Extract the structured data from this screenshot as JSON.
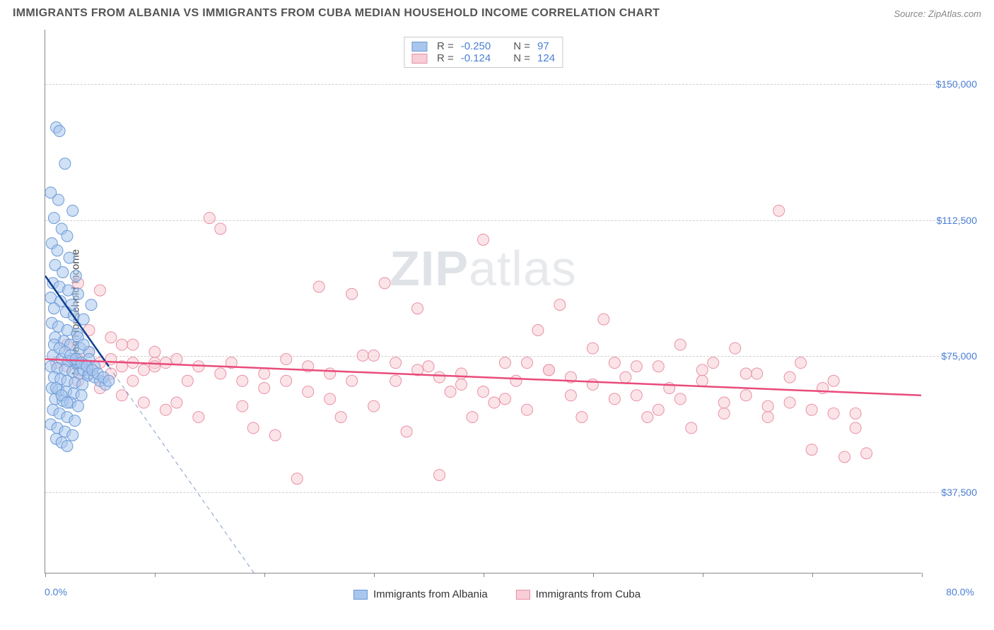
{
  "title": "IMMIGRANTS FROM ALBANIA VS IMMIGRANTS FROM CUBA MEDIAN HOUSEHOLD INCOME CORRELATION CHART",
  "source": "Source: ZipAtlas.com",
  "watermark_bold": "ZIP",
  "watermark_rest": "atlas",
  "y_axis_label": "Median Household Income",
  "chart": {
    "type": "scatter",
    "background": "#ffffff",
    "grid_color": "#d0d0d0",
    "xlim": [
      0,
      80
    ],
    "ylim": [
      15000,
      165000
    ],
    "x_ticks": [
      0,
      10,
      20,
      30,
      40,
      50,
      60,
      70,
      80
    ],
    "y_gridlines": [
      37500,
      75000,
      112500,
      150000
    ],
    "y_tick_labels": [
      "$37,500",
      "$75,000",
      "$112,500",
      "$150,000"
    ],
    "x_min_label": "0.0%",
    "x_max_label": "80.0%",
    "series": [
      {
        "key": "albania",
        "label": "Immigrants from Albania",
        "fill": "#a9c6ed",
        "stroke": "#6a9ad8",
        "line_color": "#0b3d91",
        "R": "-0.250",
        "N": "97",
        "trend_solid": {
          "x1": 0,
          "y1": 97000,
          "x2": 5.8,
          "y2": 72000
        },
        "trend_dash": {
          "x1": 5.8,
          "y1": 72000,
          "x2": 23,
          "y2": -2000
        },
        "points": [
          [
            1.0,
            138000
          ],
          [
            1.3,
            137000
          ],
          [
            1.8,
            128000
          ],
          [
            0.5,
            120000
          ],
          [
            1.2,
            118000
          ],
          [
            2.5,
            115000
          ],
          [
            0.8,
            113000
          ],
          [
            1.5,
            110000
          ],
          [
            2.0,
            108000
          ],
          [
            0.6,
            106000
          ],
          [
            1.1,
            104000
          ],
          [
            2.2,
            102000
          ],
          [
            0.9,
            100000
          ],
          [
            1.6,
            98000
          ],
          [
            2.8,
            97000
          ],
          [
            0.7,
            95000
          ],
          [
            1.3,
            94000
          ],
          [
            2.1,
            93000
          ],
          [
            3.0,
            92000
          ],
          [
            0.5,
            91000
          ],
          [
            1.4,
            90000
          ],
          [
            2.4,
            89000
          ],
          [
            0.8,
            88000
          ],
          [
            1.9,
            87000
          ],
          [
            2.6,
            86000
          ],
          [
            3.5,
            85000
          ],
          [
            0.6,
            84000
          ],
          [
            1.2,
            83000
          ],
          [
            2.0,
            82000
          ],
          [
            2.9,
            81000
          ],
          [
            0.9,
            80000
          ],
          [
            1.7,
            79000
          ],
          [
            2.3,
            78000
          ],
          [
            3.2,
            77000
          ],
          [
            4.0,
            76000
          ],
          [
            0.7,
            75000
          ],
          [
            1.5,
            74000
          ],
          [
            2.1,
            73500
          ],
          [
            2.8,
            73000
          ],
          [
            3.6,
            72500
          ],
          [
            0.5,
            72000
          ],
          [
            1.1,
            71500
          ],
          [
            1.8,
            71000
          ],
          [
            2.5,
            70500
          ],
          [
            3.1,
            70000
          ],
          [
            3.9,
            69500
          ],
          [
            0.8,
            69000
          ],
          [
            1.4,
            68500
          ],
          [
            2.0,
            68000
          ],
          [
            2.7,
            67500
          ],
          [
            3.4,
            67000
          ],
          [
            4.2,
            89000
          ],
          [
            0.6,
            66000
          ],
          [
            1.2,
            65500
          ],
          [
            1.9,
            65000
          ],
          [
            2.6,
            64500
          ],
          [
            3.3,
            64000
          ],
          [
            0.9,
            63000
          ],
          [
            1.6,
            62500
          ],
          [
            2.3,
            62000
          ],
          [
            3.0,
            61000
          ],
          [
            0.7,
            60000
          ],
          [
            1.3,
            59000
          ],
          [
            2.0,
            58000
          ],
          [
            2.7,
            57000
          ],
          [
            0.5,
            56000
          ],
          [
            1.1,
            55000
          ],
          [
            1.8,
            54000
          ],
          [
            2.5,
            53000
          ],
          [
            3.0,
            80000
          ],
          [
            3.5,
            78000
          ],
          [
            4.0,
            74000
          ],
          [
            4.5,
            72000
          ],
          [
            1.0,
            52000
          ],
          [
            1.5,
            51000
          ],
          [
            2.0,
            50000
          ],
          [
            2.5,
            74000
          ],
          [
            3.0,
            73000
          ],
          [
            3.5,
            71000
          ],
          [
            4.0,
            70000
          ],
          [
            4.5,
            69000
          ],
          [
            5.0,
            68000
          ],
          [
            5.5,
            67000
          ],
          [
            0.8,
            78000
          ],
          [
            1.3,
            77000
          ],
          [
            1.8,
            76000
          ],
          [
            2.3,
            75000
          ],
          [
            2.8,
            74000
          ],
          [
            3.3,
            73000
          ],
          [
            3.8,
            72000
          ],
          [
            4.3,
            71000
          ],
          [
            4.8,
            70000
          ],
          [
            5.3,
            69000
          ],
          [
            5.8,
            68000
          ],
          [
            1.0,
            66000
          ],
          [
            1.5,
            64000
          ],
          [
            2.0,
            62000
          ]
        ]
      },
      {
        "key": "cuba",
        "label": "Immigrants from Cuba",
        "fill": "#f7cdd6",
        "stroke": "#ea8fa6",
        "line_color": "#e94b7a",
        "R": "-0.124",
        "N": "124",
        "trend_solid": {
          "x1": 0,
          "y1": 74000,
          "x2": 80,
          "y2": 64000
        },
        "points": [
          [
            1,
            73000
          ],
          [
            2,
            72000
          ],
          [
            3,
            74000
          ],
          [
            4,
            71000
          ],
          [
            5,
            73000
          ],
          [
            6,
            70000
          ],
          [
            7,
            72000
          ],
          [
            8,
            68000
          ],
          [
            9,
            71000
          ],
          [
            10,
            73000
          ],
          [
            3,
            95000
          ],
          [
            5,
            93000
          ],
          [
            7,
            78000
          ],
          [
            11,
            73000
          ],
          [
            12,
            62000
          ],
          [
            13,
            68000
          ],
          [
            14,
            58000
          ],
          [
            15,
            113000
          ],
          [
            16,
            110000
          ],
          [
            17,
            73000
          ],
          [
            18,
            61000
          ],
          [
            19,
            55000
          ],
          [
            20,
            70000
          ],
          [
            21,
            53000
          ],
          [
            22,
            68000
          ],
          [
            23,
            41000
          ],
          [
            24,
            65000
          ],
          [
            25,
            94000
          ],
          [
            26,
            63000
          ],
          [
            27,
            58000
          ],
          [
            28,
            92000
          ],
          [
            29,
            75000
          ],
          [
            30,
            61000
          ],
          [
            31,
            95000
          ],
          [
            32,
            68000
          ],
          [
            33,
            54000
          ],
          [
            34,
            88000
          ],
          [
            35,
            72000
          ],
          [
            36,
            42000
          ],
          [
            37,
            65000
          ],
          [
            38,
            70000
          ],
          [
            39,
            58000
          ],
          [
            40,
            107000
          ],
          [
            41,
            62000
          ],
          [
            42,
            73000
          ],
          [
            43,
            68000
          ],
          [
            44,
            60000
          ],
          [
            45,
            82000
          ],
          [
            46,
            71000
          ],
          [
            47,
            89000
          ],
          [
            48,
            64000
          ],
          [
            49,
            58000
          ],
          [
            50,
            77000
          ],
          [
            51,
            85000
          ],
          [
            52,
            63000
          ],
          [
            53,
            69000
          ],
          [
            54,
            72000
          ],
          [
            55,
            58000
          ],
          [
            56,
            60000
          ],
          [
            57,
            66000
          ],
          [
            58,
            78000
          ],
          [
            59,
            55000
          ],
          [
            60,
            68000
          ],
          [
            61,
            73000
          ],
          [
            62,
            59000
          ],
          [
            63,
            77000
          ],
          [
            64,
            64000
          ],
          [
            65,
            70000
          ],
          [
            66,
            58000
          ],
          [
            67,
            115000
          ],
          [
            68,
            62000
          ],
          [
            69,
            73000
          ],
          [
            70,
            49000
          ],
          [
            71,
            66000
          ],
          [
            72,
            59000
          ],
          [
            73,
            47000
          ],
          [
            74,
            55000
          ],
          [
            75,
            48000
          ],
          [
            2,
            78000
          ],
          [
            4,
            76000
          ],
          [
            6,
            74000
          ],
          [
            8,
            73000
          ],
          [
            10,
            72000
          ],
          [
            3,
            68000
          ],
          [
            5,
            66000
          ],
          [
            7,
            64000
          ],
          [
            9,
            62000
          ],
          [
            11,
            60000
          ],
          [
            4,
            82000
          ],
          [
            6,
            80000
          ],
          [
            8,
            78000
          ],
          [
            10,
            76000
          ],
          [
            12,
            74000
          ],
          [
            14,
            72000
          ],
          [
            16,
            70000
          ],
          [
            18,
            68000
          ],
          [
            20,
            66000
          ],
          [
            22,
            74000
          ],
          [
            24,
            72000
          ],
          [
            26,
            70000
          ],
          [
            28,
            68000
          ],
          [
            30,
            75000
          ],
          [
            32,
            73000
          ],
          [
            34,
            71000
          ],
          [
            36,
            69000
          ],
          [
            38,
            67000
          ],
          [
            40,
            65000
          ],
          [
            42,
            63000
          ],
          [
            44,
            73000
          ],
          [
            46,
            71000
          ],
          [
            48,
            69000
          ],
          [
            50,
            67000
          ],
          [
            52,
            73000
          ],
          [
            54,
            64000
          ],
          [
            56,
            72000
          ],
          [
            58,
            63000
          ],
          [
            60,
            71000
          ],
          [
            62,
            62000
          ],
          [
            64,
            70000
          ],
          [
            66,
            61000
          ],
          [
            68,
            69000
          ],
          [
            70,
            60000
          ],
          [
            72,
            68000
          ],
          [
            74,
            59000
          ]
        ]
      }
    ]
  }
}
